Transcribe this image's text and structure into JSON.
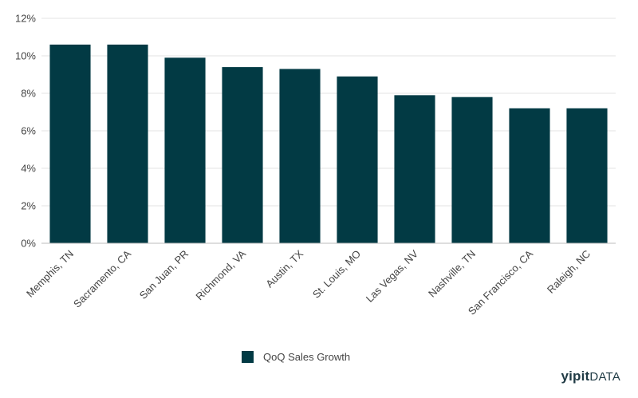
{
  "chart_data": {
    "type": "bar",
    "categories": [
      "Memphis, TN",
      "Sacramento, CA",
      "San Juan, PR",
      "Richmond, VA",
      "Austin, TX",
      "St. Louis, MO",
      "Las Vegas, NV",
      "Nashville, TN",
      "San Francisco, CA",
      "Raleigh, NC"
    ],
    "series": [
      {
        "name": "QoQ Sales Growth",
        "values": [
          10.6,
          10.6,
          9.9,
          9.4,
          9.3,
          8.9,
          7.9,
          7.8,
          7.2,
          7.2
        ]
      }
    ],
    "y_ticks": [
      "0%",
      "2%",
      "4%",
      "6%",
      "8%",
      "10%",
      "12%"
    ],
    "ylim": [
      0,
      12
    ],
    "grid": true,
    "legend_position": "bottom-center",
    "bar_color": "#023a44"
  },
  "brand": {
    "part1": "yipit",
    "part2": "DATA"
  }
}
